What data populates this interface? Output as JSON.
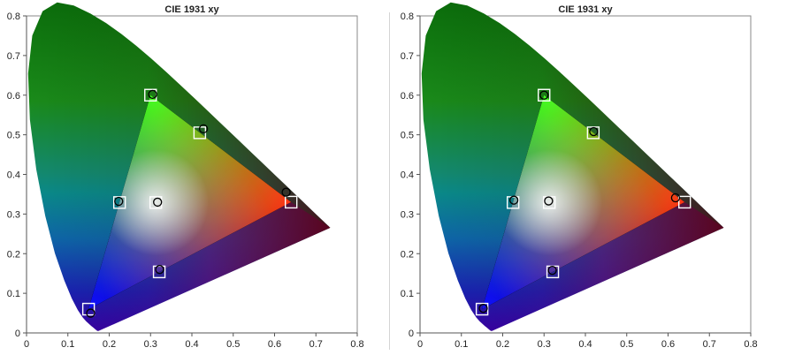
{
  "chart_data": [
    {
      "type": "scatter",
      "title": "CIE 1931 xy",
      "xlim": [
        0,
        0.8
      ],
      "ylim": [
        0,
        0.8
      ],
      "x_ticks": [
        "0",
        "0.1",
        "0.2",
        "0.3",
        "0.4",
        "0.5",
        "0.6",
        "0.7",
        "0.8"
      ],
      "y_ticks": [
        "0",
        "0.1",
        "0.2",
        "0.3",
        "0.4",
        "0.5",
        "0.6",
        "0.7",
        "0.8"
      ],
      "grid": false,
      "series": [
        {
          "marker": "square",
          "points": [
            {
              "x": 0.64,
              "y": 0.33
            },
            {
              "x": 0.3,
              "y": 0.6
            },
            {
              "x": 0.15,
              "y": 0.06
            },
            {
              "x": 0.225,
              "y": 0.329
            },
            {
              "x": 0.321,
              "y": 0.154
            },
            {
              "x": 0.419,
              "y": 0.505
            },
            {
              "x": 0.3127,
              "y": 0.329
            }
          ]
        },
        {
          "marker": "circle",
          "points": [
            {
              "x": 0.628,
              "y": 0.355
            },
            {
              "x": 0.305,
              "y": 0.602
            },
            {
              "x": 0.155,
              "y": 0.05
            },
            {
              "x": 0.223,
              "y": 0.332
            },
            {
              "x": 0.322,
              "y": 0.16
            },
            {
              "x": 0.428,
              "y": 0.515
            },
            {
              "x": 0.317,
              "y": 0.33
            }
          ]
        }
      ]
    },
    {
      "type": "scatter",
      "title": "CIE 1931 xy",
      "xlim": [
        0,
        0.8
      ],
      "ylim": [
        0,
        0.8
      ],
      "x_ticks": [
        "0",
        "0.1",
        "0.2",
        "0.3",
        "0.4",
        "0.5",
        "0.6",
        "0.7",
        "0.8"
      ],
      "y_ticks": [
        "0",
        "0.1",
        "0.2",
        "0.3",
        "0.4",
        "0.5",
        "0.6",
        "0.7",
        "0.8"
      ],
      "grid": false,
      "series": [
        {
          "marker": "square",
          "points": [
            {
              "x": 0.64,
              "y": 0.33
            },
            {
              "x": 0.3,
              "y": 0.6
            },
            {
              "x": 0.15,
              "y": 0.06
            },
            {
              "x": 0.225,
              "y": 0.329
            },
            {
              "x": 0.321,
              "y": 0.154
            },
            {
              "x": 0.419,
              "y": 0.505
            },
            {
              "x": 0.3127,
              "y": 0.329
            }
          ]
        },
        {
          "marker": "circle",
          "points": [
            {
              "x": 0.618,
              "y": 0.341
            },
            {
              "x": 0.3,
              "y": 0.6
            },
            {
              "x": 0.153,
              "y": 0.062
            },
            {
              "x": 0.227,
              "y": 0.335
            },
            {
              "x": 0.32,
              "y": 0.158
            },
            {
              "x": 0.42,
              "y": 0.508
            },
            {
              "x": 0.311,
              "y": 0.333
            }
          ]
        }
      ]
    }
  ]
}
